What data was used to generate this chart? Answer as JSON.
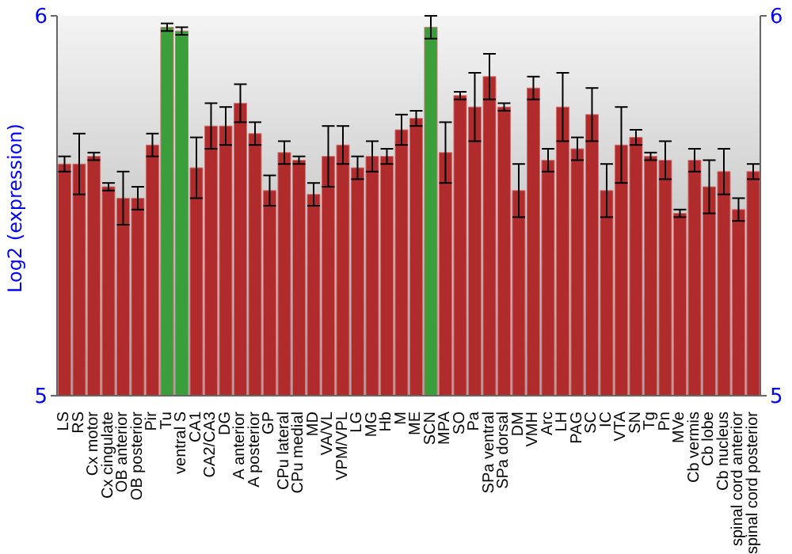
{
  "chart_data": {
    "type": "bar",
    "ylabel": "Log2 (expression)",
    "categories": [
      "LS",
      "RS",
      "Cx motor",
      "Cx cingulate",
      "OB anterior",
      "OB posterior",
      "Pir",
      "Tu",
      "ventral S",
      "CA1",
      "CA2/CA3",
      "DG",
      "A anterior",
      "A posterior",
      "GP",
      "CPu lateral",
      "CPu medial",
      "MD",
      "VA/VL",
      "VPM/VPL",
      "LG",
      "MG",
      "Hb",
      "M",
      "ME",
      "SCN",
      "MPA",
      "SO",
      "Pa",
      "SPa ventral",
      "SPa dorsal",
      "DM",
      "VMH",
      "Arc",
      "LH",
      "PAG",
      "SC",
      "IC",
      "VTA",
      "SN",
      "Tg",
      "Pn",
      "MVe",
      "Cb vermis",
      "Cb lobe",
      "Cb nucleus",
      "spinal cord anterior",
      "spinal cord posterior"
    ],
    "values": [
      5.61,
      5.61,
      5.63,
      5.55,
      5.52,
      5.52,
      5.66,
      5.97,
      5.96,
      5.6,
      5.71,
      5.71,
      5.77,
      5.69,
      5.54,
      5.64,
      5.62,
      5.53,
      5.63,
      5.66,
      5.6,
      5.63,
      5.63,
      5.7,
      5.73,
      5.97,
      5.64,
      5.79,
      5.76,
      5.84,
      5.76,
      5.54,
      5.81,
      5.62,
      5.76,
      5.65,
      5.74,
      5.54,
      5.66,
      5.68,
      5.63,
      5.62,
      5.48,
      5.62,
      5.55,
      5.59,
      5.49,
      5.59
    ],
    "errors": [
      0.02,
      0.08,
      0.01,
      0.01,
      0.07,
      0.03,
      0.03,
      0.01,
      0.01,
      0.08,
      0.06,
      0.05,
      0.05,
      0.03,
      0.04,
      0.03,
      0.01,
      0.03,
      0.08,
      0.05,
      0.03,
      0.04,
      0.02,
      0.04,
      0.02,
      0.03,
      0.08,
      0.01,
      0.09,
      0.06,
      0.01,
      0.07,
      0.03,
      0.03,
      0.09,
      0.03,
      0.07,
      0.07,
      0.1,
      0.02,
      0.01,
      0.05,
      0.01,
      0.03,
      0.07,
      0.06,
      0.03,
      0.02
    ],
    "colors": [
      "#b02c2c",
      "#b02c2c",
      "#b02c2c",
      "#b02c2c",
      "#b02c2c",
      "#b02c2c",
      "#b02c2c",
      "#3a9e3a",
      "#3a9e3a",
      "#b02c2c",
      "#b02c2c",
      "#b02c2c",
      "#b02c2c",
      "#b02c2c",
      "#b02c2c",
      "#b02c2c",
      "#b02c2c",
      "#b02c2c",
      "#b02c2c",
      "#b02c2c",
      "#b02c2c",
      "#b02c2c",
      "#b02c2c",
      "#b02c2c",
      "#b02c2c",
      "#3a9e3a",
      "#b02c2c",
      "#b02c2c",
      "#b02c2c",
      "#b02c2c",
      "#b02c2c",
      "#b02c2c",
      "#b02c2c",
      "#b02c2c",
      "#b02c2c",
      "#b02c2c",
      "#b02c2c",
      "#b02c2c",
      "#b02c2c",
      "#b02c2c",
      "#b02c2c",
      "#b02c2c",
      "#b02c2c",
      "#b02c2c",
      "#b02c2c",
      "#b02c2c",
      "#b02c2c",
      "#b02c2c"
    ],
    "ylim": [
      5,
      6
    ],
    "yticks": [
      5,
      6
    ],
    "y2lim": [
      5,
      6
    ],
    "y2ticks": [
      5,
      6
    ],
    "grid": false
  }
}
